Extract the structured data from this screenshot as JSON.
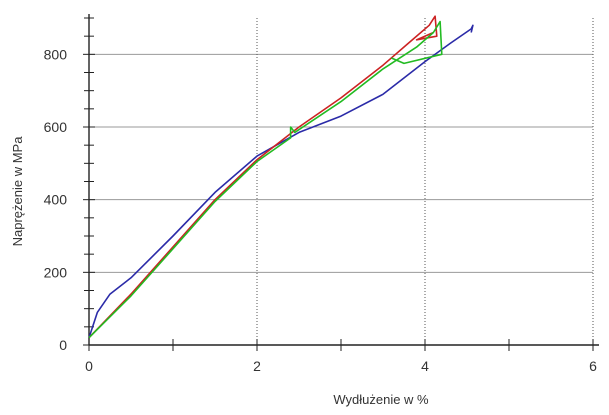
{
  "chart_data": {
    "type": "line",
    "xlabel": "Wydłużenie w %",
    "ylabel": "Naprężenie w MPa",
    "xlim": [
      0,
      6
    ],
    "ylim": [
      0,
      900
    ],
    "x_ticks": [
      0,
      2,
      4,
      6
    ],
    "y_ticks": [
      0,
      200,
      400,
      600,
      800
    ],
    "x_tick_labels": [
      "0",
      "2",
      "4",
      "6"
    ],
    "y_tick_labels": [
      "0",
      "200",
      "400",
      "600",
      "800"
    ],
    "grid": true,
    "legend": "none",
    "series": [
      {
        "color": "#2b2ba8",
        "points": [
          [
            0.0,
            20
          ],
          [
            0.1,
            90
          ],
          [
            0.25,
            140
          ],
          [
            0.5,
            185
          ],
          [
            1.0,
            300
          ],
          [
            1.5,
            420
          ],
          [
            2.0,
            520
          ],
          [
            2.5,
            585
          ],
          [
            3.0,
            630
          ],
          [
            3.5,
            690
          ],
          [
            4.0,
            780
          ],
          [
            4.3,
            830
          ],
          [
            4.55,
            870
          ],
          [
            4.57,
            880
          ],
          [
            4.55,
            860
          ]
        ]
      },
      {
        "color": "#cc2222",
        "points": [
          [
            0.0,
            20
          ],
          [
            0.5,
            140
          ],
          [
            1.0,
            270
          ],
          [
            1.5,
            400
          ],
          [
            2.0,
            510
          ],
          [
            2.5,
            600
          ],
          [
            3.0,
            680
          ],
          [
            3.5,
            770
          ],
          [
            3.8,
            830
          ],
          [
            4.05,
            880
          ],
          [
            4.12,
            905
          ],
          [
            4.14,
            850
          ],
          [
            3.9,
            840
          ],
          [
            4.1,
            860
          ]
        ]
      },
      {
        "color": "#22bb22",
        "points": [
          [
            0.0,
            20
          ],
          [
            0.5,
            135
          ],
          [
            1.0,
            265
          ],
          [
            1.5,
            395
          ],
          [
            2.0,
            505
          ],
          [
            2.4,
            570
          ],
          [
            2.4,
            600
          ],
          [
            2.45,
            585
          ],
          [
            3.0,
            670
          ],
          [
            3.5,
            760
          ],
          [
            3.9,
            820
          ],
          [
            4.1,
            860
          ],
          [
            4.18,
            890
          ],
          [
            4.2,
            800
          ],
          [
            3.75,
            775
          ],
          [
            3.6,
            790
          ]
        ]
      }
    ]
  }
}
